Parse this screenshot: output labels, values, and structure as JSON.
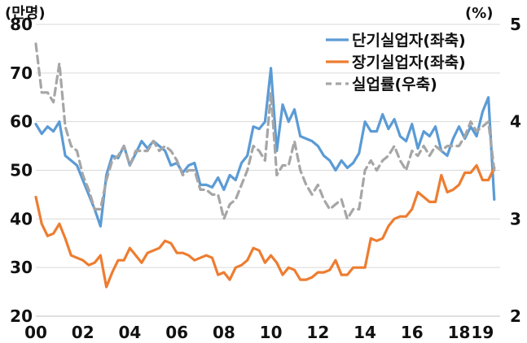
{
  "chart_data": {
    "type": "line",
    "left_unit": "(만명)",
    "right_unit": "(%)",
    "y_left": {
      "lim": [
        20,
        80
      ],
      "ticks": [
        "20",
        "30",
        "40",
        "50",
        "60",
        "70",
        "80"
      ]
    },
    "y_right": {
      "lim": [
        2,
        5
      ],
      "ticks": [
        "2",
        "3",
        "4",
        "5"
      ]
    },
    "x_lim": [
      2000,
      2019.75
    ],
    "x_ticks": [
      {
        "value": 2000,
        "label": "00"
      },
      {
        "value": 2002,
        "label": "02"
      },
      {
        "value": 2004,
        "label": "04"
      },
      {
        "value": 2006,
        "label": "06"
      },
      {
        "value": 2008,
        "label": "08"
      },
      {
        "value": 2010,
        "label": "10"
      },
      {
        "value": 2012,
        "label": "12"
      },
      {
        "value": 2014,
        "label": "14"
      },
      {
        "value": 2016,
        "label": "16"
      },
      {
        "value": 2018,
        "label": "18"
      },
      {
        "value": 2019,
        "label": "19"
      }
    ],
    "grid": "horizontal",
    "legend_position": "top-right",
    "series": [
      {
        "name": "단기실업자(좌축)",
        "axis": "left",
        "color": "#5b9bd5",
        "style": "solid",
        "points": [
          [
            2000.0,
            59.5
          ],
          [
            2000.25,
            57.5
          ],
          [
            2000.5,
            59
          ],
          [
            2000.75,
            58
          ],
          [
            2001.0,
            60
          ],
          [
            2001.25,
            53
          ],
          [
            2001.5,
            52
          ],
          [
            2001.75,
            51
          ],
          [
            2002.0,
            48
          ],
          [
            2002.25,
            45
          ],
          [
            2002.5,
            42
          ],
          [
            2002.75,
            38.5
          ],
          [
            2003.0,
            49
          ],
          [
            2003.25,
            53
          ],
          [
            2003.5,
            52.5
          ],
          [
            2003.75,
            55
          ],
          [
            2004.0,
            51
          ],
          [
            2004.25,
            53.5
          ],
          [
            2004.5,
            56
          ],
          [
            2004.75,
            54.5
          ],
          [
            2005.0,
            56
          ],
          [
            2005.25,
            55
          ],
          [
            2005.5,
            54
          ],
          [
            2005.75,
            51
          ],
          [
            2006.0,
            51.5
          ],
          [
            2006.25,
            49.5
          ],
          [
            2006.5,
            51
          ],
          [
            2006.75,
            51.5
          ],
          [
            2007.0,
            47
          ],
          [
            2007.25,
            47
          ],
          [
            2007.5,
            46.5
          ],
          [
            2007.75,
            48.5
          ],
          [
            2008.0,
            46
          ],
          [
            2008.25,
            49
          ],
          [
            2008.5,
            48
          ],
          [
            2008.75,
            51.5
          ],
          [
            2009.0,
            53
          ],
          [
            2009.25,
            59
          ],
          [
            2009.5,
            58.5
          ],
          [
            2009.75,
            60
          ],
          [
            2010.0,
            71
          ],
          [
            2010.25,
            54
          ],
          [
            2010.5,
            63.5
          ],
          [
            2010.75,
            60
          ],
          [
            2011.0,
            62.5
          ],
          [
            2011.25,
            57
          ],
          [
            2011.5,
            56.5
          ],
          [
            2011.75,
            56
          ],
          [
            2012.0,
            55
          ],
          [
            2012.25,
            53
          ],
          [
            2012.5,
            52
          ],
          [
            2012.75,
            50
          ],
          [
            2013.0,
            52
          ],
          [
            2013.25,
            50.5
          ],
          [
            2013.5,
            51.5
          ],
          [
            2013.75,
            53.5
          ],
          [
            2014.0,
            60
          ],
          [
            2014.25,
            58
          ],
          [
            2014.5,
            58
          ],
          [
            2014.75,
            61.5
          ],
          [
            2015.0,
            58.5
          ],
          [
            2015.25,
            60.5
          ],
          [
            2015.5,
            57
          ],
          [
            2015.75,
            56
          ],
          [
            2016.0,
            59.5
          ],
          [
            2016.25,
            54.5
          ],
          [
            2016.5,
            58
          ],
          [
            2016.75,
            57
          ],
          [
            2017.0,
            59
          ],
          [
            2017.25,
            54
          ],
          [
            2017.5,
            53
          ],
          [
            2017.75,
            56.5
          ],
          [
            2018.0,
            59
          ],
          [
            2018.25,
            56.5
          ],
          [
            2018.5,
            59
          ],
          [
            2018.75,
            57
          ],
          [
            2019.0,
            62
          ],
          [
            2019.25,
            65
          ],
          [
            2019.5,
            44
          ]
        ]
      },
      {
        "name": "장기실업자(좌축)",
        "axis": "left",
        "color": "#ed7d31",
        "style": "solid",
        "points": [
          [
            2000.0,
            44.5
          ],
          [
            2000.25,
            39
          ],
          [
            2000.5,
            36.5
          ],
          [
            2000.75,
            37
          ],
          [
            2001.0,
            39
          ],
          [
            2001.25,
            36
          ],
          [
            2001.5,
            32.5
          ],
          [
            2001.75,
            32
          ],
          [
            2002.0,
            31.5
          ],
          [
            2002.25,
            30.5
          ],
          [
            2002.5,
            31
          ],
          [
            2002.75,
            32.5
          ],
          [
            2003.0,
            26
          ],
          [
            2003.25,
            29
          ],
          [
            2003.5,
            31.5
          ],
          [
            2003.75,
            31.5
          ],
          [
            2004.0,
            34
          ],
          [
            2004.25,
            32.5
          ],
          [
            2004.5,
            31
          ],
          [
            2004.75,
            33
          ],
          [
            2005.0,
            33.5
          ],
          [
            2005.25,
            34
          ],
          [
            2005.5,
            35.5
          ],
          [
            2005.75,
            35
          ],
          [
            2006.0,
            33
          ],
          [
            2006.25,
            33
          ],
          [
            2006.5,
            32.5
          ],
          [
            2006.75,
            31.5
          ],
          [
            2007.0,
            32
          ],
          [
            2007.25,
            32.5
          ],
          [
            2007.5,
            32
          ],
          [
            2007.75,
            28.5
          ],
          [
            2008.0,
            29
          ],
          [
            2008.25,
            27.5
          ],
          [
            2008.5,
            30
          ],
          [
            2008.75,
            30.5
          ],
          [
            2009.0,
            31.5
          ],
          [
            2009.25,
            34
          ],
          [
            2009.5,
            33.5
          ],
          [
            2009.75,
            31
          ],
          [
            2010.0,
            32.5
          ],
          [
            2010.25,
            31
          ],
          [
            2010.5,
            28.5
          ],
          [
            2010.75,
            30
          ],
          [
            2011.0,
            29.5
          ],
          [
            2011.25,
            27.5
          ],
          [
            2011.5,
            27.5
          ],
          [
            2011.75,
            28
          ],
          [
            2012.0,
            29
          ],
          [
            2012.25,
            29
          ],
          [
            2012.5,
            29.5
          ],
          [
            2012.75,
            31.5
          ],
          [
            2013.0,
            28.5
          ],
          [
            2013.25,
            28.5
          ],
          [
            2013.5,
            30
          ],
          [
            2013.75,
            30
          ],
          [
            2014.0,
            30
          ],
          [
            2014.25,
            36
          ],
          [
            2014.5,
            35.5
          ],
          [
            2014.75,
            36
          ],
          [
            2015.0,
            38.5
          ],
          [
            2015.25,
            40
          ],
          [
            2015.5,
            40.5
          ],
          [
            2015.75,
            40.5
          ],
          [
            2016.0,
            42
          ],
          [
            2016.25,
            45.5
          ],
          [
            2016.5,
            44.5
          ],
          [
            2016.75,
            43.5
          ],
          [
            2017.0,
            43.5
          ],
          [
            2017.25,
            49
          ],
          [
            2017.5,
            45.5
          ],
          [
            2017.75,
            46
          ],
          [
            2018.0,
            47
          ],
          [
            2018.25,
            49.5
          ],
          [
            2018.5,
            49.5
          ],
          [
            2018.75,
            51
          ],
          [
            2019.0,
            48
          ],
          [
            2019.25,
            48
          ],
          [
            2019.5,
            50.5
          ]
        ]
      },
      {
        "name": "실업률(우축)",
        "axis": "right",
        "color": "#a6a6a6",
        "style": "dashed",
        "points": [
          [
            2000.0,
            4.8
          ],
          [
            2000.25,
            4.3
          ],
          [
            2000.5,
            4.3
          ],
          [
            2000.75,
            4.2
          ],
          [
            2001.0,
            4.6
          ],
          [
            2001.25,
            3.95
          ],
          [
            2001.5,
            3.75
          ],
          [
            2001.75,
            3.7
          ],
          [
            2002.0,
            3.45
          ],
          [
            2002.25,
            3.3
          ],
          [
            2002.5,
            3.1
          ],
          [
            2002.75,
            3.1
          ],
          [
            2003.0,
            3.4
          ],
          [
            2003.25,
            3.6
          ],
          [
            2003.5,
            3.65
          ],
          [
            2003.75,
            3.75
          ],
          [
            2004.0,
            3.55
          ],
          [
            2004.25,
            3.7
          ],
          [
            2004.5,
            3.7
          ],
          [
            2004.75,
            3.7
          ],
          [
            2005.0,
            3.8
          ],
          [
            2005.25,
            3.7
          ],
          [
            2005.5,
            3.75
          ],
          [
            2005.75,
            3.7
          ],
          [
            2006.0,
            3.6
          ],
          [
            2006.25,
            3.45
          ],
          [
            2006.5,
            3.5
          ],
          [
            2006.75,
            3.5
          ],
          [
            2007.0,
            3.3
          ],
          [
            2007.25,
            3.3
          ],
          [
            2007.5,
            3.25
          ],
          [
            2007.75,
            3.25
          ],
          [
            2008.0,
            3.0
          ],
          [
            2008.25,
            3.15
          ],
          [
            2008.5,
            3.2
          ],
          [
            2008.75,
            3.35
          ],
          [
            2009.0,
            3.5
          ],
          [
            2009.25,
            3.75
          ],
          [
            2009.5,
            3.7
          ],
          [
            2009.75,
            3.6
          ],
          [
            2010.0,
            4.3
          ],
          [
            2010.25,
            3.45
          ],
          [
            2010.5,
            3.55
          ],
          [
            2010.75,
            3.55
          ],
          [
            2011.0,
            3.8
          ],
          [
            2011.25,
            3.5
          ],
          [
            2011.5,
            3.35
          ],
          [
            2011.75,
            3.25
          ],
          [
            2012.0,
            3.35
          ],
          [
            2012.25,
            3.2
          ],
          [
            2012.5,
            3.1
          ],
          [
            2012.75,
            3.15
          ],
          [
            2013.0,
            3.2
          ],
          [
            2013.25,
            3.0
          ],
          [
            2013.5,
            3.1
          ],
          [
            2013.75,
            3.1
          ],
          [
            2014.0,
            3.5
          ],
          [
            2014.25,
            3.6
          ],
          [
            2014.5,
            3.5
          ],
          [
            2014.75,
            3.6
          ],
          [
            2015.0,
            3.65
          ],
          [
            2015.25,
            3.75
          ],
          [
            2015.5,
            3.6
          ],
          [
            2015.75,
            3.5
          ],
          [
            2016.0,
            3.7
          ],
          [
            2016.25,
            3.65
          ],
          [
            2016.5,
            3.75
          ],
          [
            2016.75,
            3.65
          ],
          [
            2017.0,
            3.75
          ],
          [
            2017.25,
            3.7
          ],
          [
            2017.5,
            3.75
          ],
          [
            2017.75,
            3.75
          ],
          [
            2018.0,
            3.75
          ],
          [
            2018.25,
            3.85
          ],
          [
            2018.5,
            4.0
          ],
          [
            2018.75,
            3.9
          ],
          [
            2019.0,
            3.95
          ],
          [
            2019.25,
            4.0
          ],
          [
            2019.5,
            3.5
          ]
        ]
      }
    ]
  }
}
